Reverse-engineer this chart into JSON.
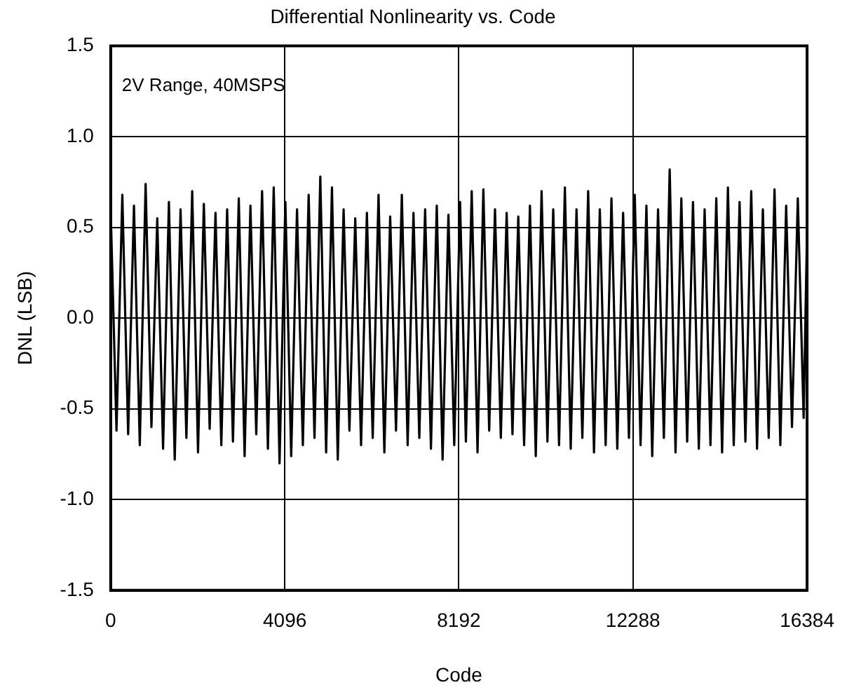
{
  "chart_data": {
    "type": "line",
    "title": "Differential Nonlinearity vs. Code",
    "xlabel": "Code",
    "ylabel": "DNL (LSB)",
    "annotations": [
      "2V Range, 40MSPS"
    ],
    "xlim": [
      0,
      16384
    ],
    "xticks": [
      0,
      4096,
      8192,
      12288,
      16384
    ],
    "ylim": [
      -1.5,
      1.5
    ],
    "yticks": [
      1.5,
      {
        "value": 1,
        "label": "1.0"
      },
      0.5,
      {
        "value": 0,
        "label": "0.0"
      },
      -0.5,
      {
        "value": -1,
        "label": "-1.0"
      },
      -1.5
    ],
    "grid": true,
    "legend": false,
    "marker": "none",
    "series": [
      {
        "color": "#000000",
        "x": [
          0,
          137,
          274,
          411,
          548,
          685,
          822,
          959,
          1096,
          1233,
          1370,
          1507,
          1644,
          1781,
          1918,
          2055,
          2192,
          2329,
          2466,
          2603,
          2740,
          2877,
          3014,
          3151,
          3288,
          3425,
          3562,
          3699,
          3836,
          3973,
          4110,
          4247,
          4384,
          4521,
          4658,
          4795,
          4932,
          5069,
          5206,
          5343,
          5480,
          5617,
          5754,
          5891,
          6028,
          6165,
          6302,
          6439,
          6576,
          6713,
          6850,
          6987,
          7124,
          7261,
          7398,
          7535,
          7672,
          7809,
          7946,
          8083,
          8220,
          8357,
          8494,
          8631,
          8768,
          8905,
          9042,
          9179,
          9316,
          9453,
          9590,
          9727,
          9864,
          10001,
          10138,
          10275,
          10412,
          10549,
          10686,
          10823,
          10960,
          11097,
          11234,
          11371,
          11508,
          11645,
          11782,
          11919,
          12056,
          12193,
          12330,
          12467,
          12604,
          12741,
          12878,
          13015,
          13152,
          13289,
          13426,
          13563,
          13700,
          13837,
          13974,
          14111,
          14248,
          14385,
          14522,
          14659,
          14796,
          14933,
          15070,
          15207,
          15344,
          15481,
          15618,
          15755,
          15892,
          16029,
          16166,
          16303,
          16383
        ],
        "values": [
          0.6,
          -0.62,
          0.68,
          -0.64,
          0.62,
          -0.7,
          0.74,
          -0.6,
          0.55,
          -0.72,
          0.64,
          -0.78,
          0.6,
          -0.66,
          0.7,
          -0.74,
          0.63,
          -0.61,
          0.58,
          -0.7,
          0.6,
          -0.68,
          0.66,
          -0.76,
          0.62,
          -0.64,
          0.7,
          -0.72,
          0.72,
          -0.8,
          0.64,
          -0.76,
          0.6,
          -0.7,
          0.68,
          -0.66,
          0.78,
          -0.74,
          0.72,
          -0.78,
          0.6,
          -0.62,
          0.55,
          -0.7,
          0.58,
          -0.66,
          0.68,
          -0.74,
          0.56,
          -0.62,
          0.68,
          -0.7,
          0.58,
          -0.66,
          0.6,
          -0.72,
          0.62,
          -0.78,
          0.57,
          -0.7,
          0.64,
          -0.68,
          0.7,
          -0.74,
          0.71,
          -0.62,
          0.6,
          -0.66,
          0.58,
          -0.64,
          0.56,
          -0.7,
          0.62,
          -0.76,
          0.7,
          -0.68,
          0.6,
          -0.7,
          0.72,
          -0.72,
          0.6,
          -0.66,
          0.7,
          -0.74,
          0.6,
          -0.7,
          0.66,
          -0.72,
          0.58,
          -0.66,
          0.68,
          -0.7,
          0.62,
          -0.76,
          0.6,
          -0.66,
          0.82,
          -0.74,
          0.66,
          -0.68,
          0.64,
          -0.72,
          0.6,
          -0.7,
          0.66,
          -0.74,
          0.72,
          -0.7,
          0.64,
          -0.68,
          0.7,
          -0.72,
          0.6,
          -0.66,
          0.71,
          -0.7,
          0.62,
          -0.6,
          0.66,
          -0.55,
          0.48
        ]
      }
    ]
  }
}
